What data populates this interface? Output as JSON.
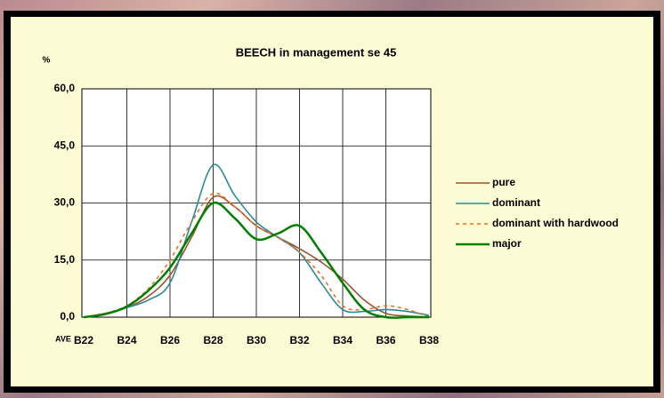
{
  "chart_data": {
    "type": "line",
    "title": "BEECH in management se 45",
    "y_label": "%",
    "x_label": "AVE",
    "categories": [
      "B22",
      null,
      "B24",
      null,
      "B26",
      null,
      "B28",
      null,
      "B30",
      null,
      "B32",
      null,
      "B34",
      null,
      "B36",
      null,
      "B38"
    ],
    "series": [
      {
        "name": "pure",
        "color": "#a0522d",
        "values": [
          0,
          1,
          2.5,
          5.5,
          11,
          21,
          31.5,
          29,
          24,
          21,
          18,
          14.5,
          10,
          4.5,
          1,
          0.3,
          0
        ]
      },
      {
        "name": "dominant",
        "color": "#2a8a9c",
        "values": [
          0,
          0.8,
          2.5,
          4.5,
          9,
          25,
          40,
          32,
          25,
          21,
          17,
          9,
          2,
          1.5,
          2,
          1.5,
          0.5
        ]
      },
      {
        "name": "dominant with hardwood",
        "color": "#f07020",
        "dashed": true,
        "values": [
          0,
          1,
          3,
          7.5,
          15,
          25,
          32.5,
          29,
          24,
          21,
          17,
          11,
          3,
          2,
          3,
          2,
          0
        ]
      },
      {
        "name": "major",
        "color": "#008000",
        "values": [
          0,
          0.8,
          2.8,
          7,
          13,
          22,
          30,
          26,
          20.5,
          22,
          24,
          17,
          9,
          2,
          0,
          0,
          0
        ]
      }
    ],
    "ylim": [
      0,
      60
    ],
    "yticks": [
      {
        "value": 0,
        "label": "0,0"
      },
      {
        "value": 15,
        "label": "15,0"
      },
      {
        "value": 30,
        "label": "30,0"
      },
      {
        "value": 45,
        "label": "45,0"
      },
      {
        "value": 60,
        "label": "60,0"
      }
    ],
    "grid": true,
    "legend": "right"
  }
}
